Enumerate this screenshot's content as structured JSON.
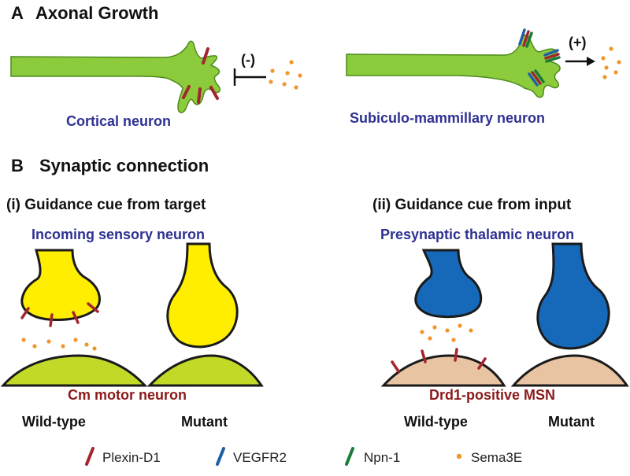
{
  "colors": {
    "plexin": "#a3262f",
    "vegfr2": "#1f5fa8",
    "npn": "#1b7a3a",
    "sema": "#f0972c",
    "green_axon": "#8ccc3c",
    "yellow": "#ffee00",
    "blue_terminal": "#1669b8",
    "lime_target": "#c3d928",
    "msn": "#e8c4a2",
    "label_blue": "#2e3192",
    "label_red": "#8b1a1a"
  },
  "panel_a": {
    "letter": "A",
    "title": "Axonal Growth",
    "left_sign": "(-)",
    "right_sign": "(+)",
    "left_label": "Cortical neuron",
    "right_label": "Subiculo-mammillary neuron"
  },
  "panel_b": {
    "letter": "B",
    "title": "Synaptic connection",
    "i": {
      "heading": "(i) Guidance cue from target",
      "top_label": "Incoming sensory neuron",
      "bottom_label": "Cm motor neuron",
      "genotypes": [
        "Wild-type",
        "Mutant"
      ]
    },
    "ii": {
      "heading": "(ii) Guidance cue from input",
      "top_label": "Presynaptic thalamic neuron",
      "bottom_label": "Drd1-positive MSN",
      "genotypes": [
        "Wild-type",
        "Mutant"
      ]
    }
  },
  "legend": [
    {
      "label": "Plexin-D1",
      "icon": "red-bar-icon",
      "color": "#a3262f"
    },
    {
      "label": "VEGFR2",
      "icon": "blue-bar-icon",
      "color": "#1f5fa8"
    },
    {
      "label": "Npn-1",
      "icon": "green-bar-icon",
      "color": "#1b7a3a"
    },
    {
      "label": "Sema3E",
      "icon": "orange-dot-icon",
      "color": "#f0972c"
    }
  ]
}
